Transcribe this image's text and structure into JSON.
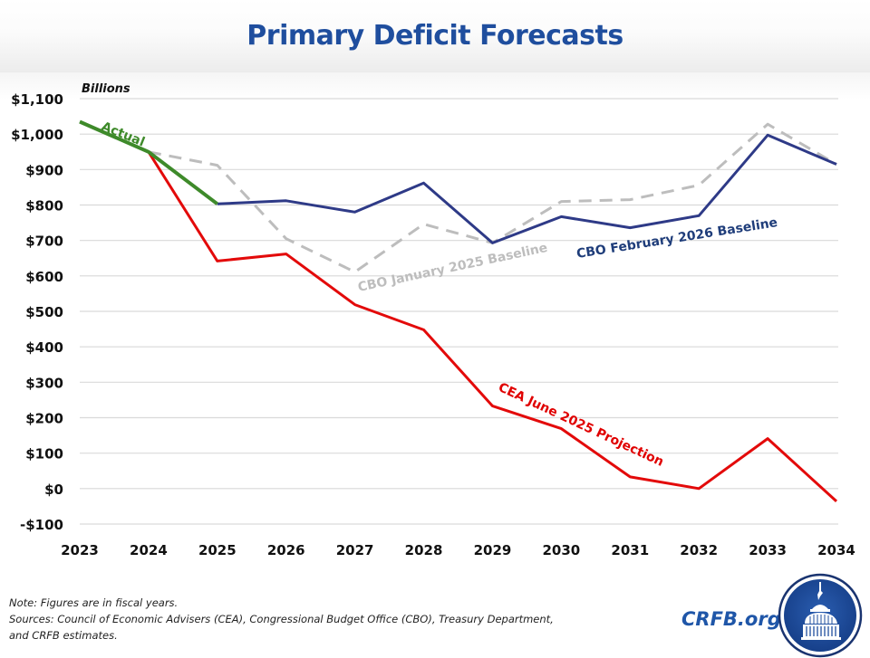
{
  "header": {
    "title": "Primary Deficit Forecasts"
  },
  "footer": {
    "note": "Note: Figures are in fiscal years.",
    "sources_line1": "Sources: Council of Economic Advisers (CEA), Congressional Budget Office (CBO), Treasury Department,",
    "sources_line2": "and CRFB estimates."
  },
  "brand": {
    "text": "CRFB.org",
    "logo_icon": "capitol-dome-icon"
  },
  "chart_data": {
    "type": "line",
    "title": "Primary Deficit Forecasts",
    "xlabel": "",
    "ylabel": "Billions",
    "unit_label": "Billions",
    "x": [
      "2023",
      "2024",
      "2025",
      "2026",
      "2027",
      "2028",
      "2029",
      "2030",
      "2031",
      "2032",
      "2033",
      "2034"
    ],
    "ylim": [
      -100,
      1100
    ],
    "yticks": [
      -100,
      0,
      100,
      200,
      300,
      400,
      500,
      600,
      700,
      800,
      900,
      1000,
      1100
    ],
    "ytick_labels": [
      "-$100",
      "$0",
      "$100",
      "$200",
      "$300",
      "$400",
      "$500",
      "$600",
      "$700",
      "$800",
      "$900",
      "$1,000",
      "$1,100"
    ],
    "grid": true,
    "legend": "inline-labels",
    "series": [
      {
        "name": "CBO January 2025 Baseline",
        "label": "CBO January 2025 Baseline",
        "color": "#bdbdbd",
        "dash": true,
        "values": [
          null,
          950,
          912,
          705,
          611,
          746,
          693,
          810,
          815,
          856,
          1028,
          915
        ]
      },
      {
        "name": "CBO February 2026 Baseline",
        "label": "CBO February 2026 Baseline",
        "color": "#2e3a87",
        "label_color": "#1f3d7a",
        "dash": false,
        "values": [
          null,
          null,
          803,
          812,
          780,
          862,
          693,
          767,
          736,
          770,
          997,
          915
        ]
      },
      {
        "name": "CEA June 2025 Projection",
        "label": "CEA June 2025 Projection",
        "color": "#e30a0a",
        "label_color": "#e00000",
        "dash": false,
        "values": [
          null,
          950,
          642,
          662,
          519,
          448,
          233,
          169,
          33,
          0,
          141,
          -36
        ]
      },
      {
        "name": "Actual",
        "label": "Actual",
        "color": "#3e8a2a",
        "dash": false,
        "values": [
          1035,
          950,
          803,
          null,
          null,
          null,
          null,
          null,
          null,
          null,
          null,
          null
        ]
      }
    ]
  }
}
